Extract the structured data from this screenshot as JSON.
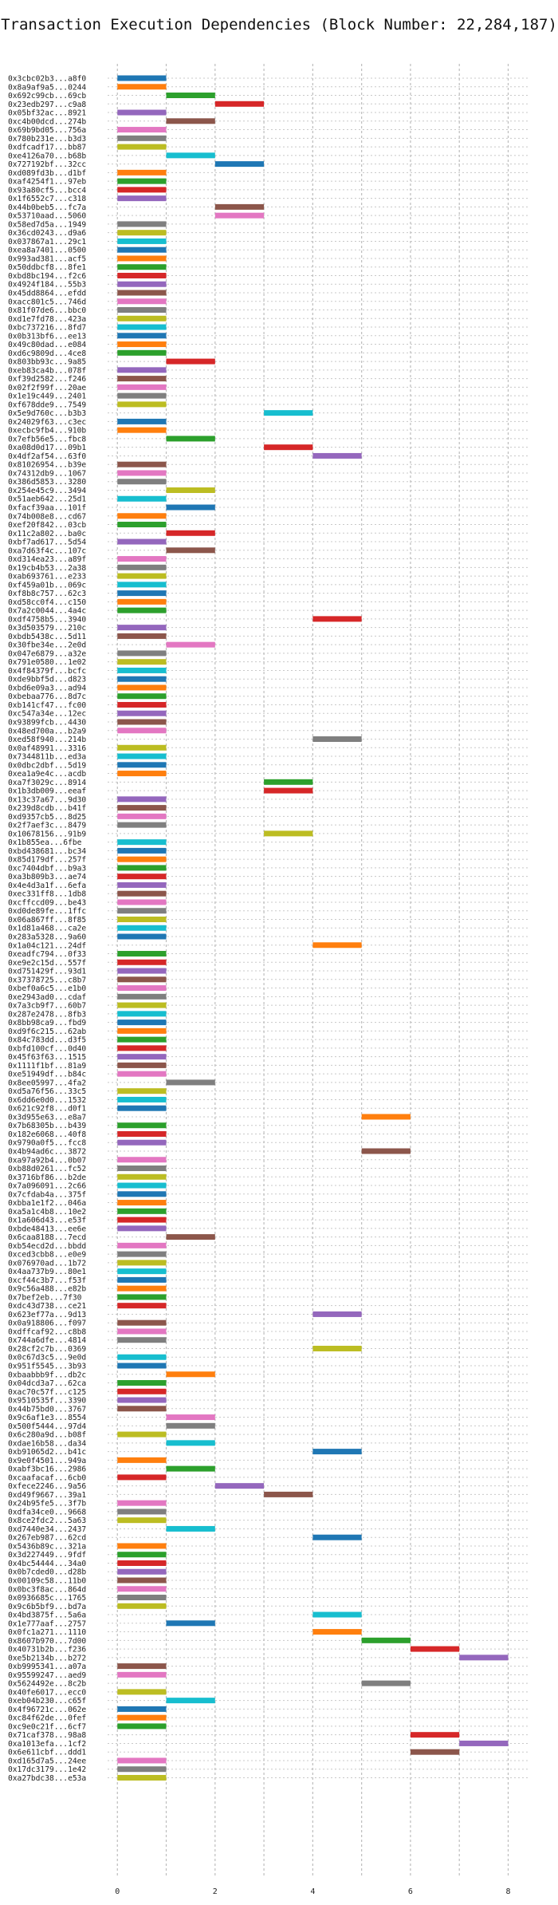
{
  "chart_data": {
    "type": "bar",
    "orientation": "horizontal",
    "title": "Transaction Execution Dependencies (Block Number: 22,284,187)",
    "xlabel": "",
    "ylabel": "",
    "xlim": [
      -0.2,
      8.4
    ],
    "xticks": [
      0,
      2,
      4,
      6,
      8
    ],
    "grid": {
      "x": true,
      "y": true,
      "style": "dotted"
    },
    "legend": "none",
    "palette": [
      "#1f77b4",
      "#ff7f0e",
      "#2ca02c",
      "#d62728",
      "#9467bd",
      "#8c564b",
      "#e377c2",
      "#7f7f7f",
      "#bcbd22",
      "#17becf"
    ],
    "transactions": [
      {
        "label": "0x3cbc02b3...a8f0",
        "start": 0,
        "end": 1
      },
      {
        "label": "0x8a9af9a5...0244",
        "start": 0,
        "end": 1
      },
      {
        "label": "0x692c99cb...69cb",
        "start": 1,
        "end": 2
      },
      {
        "label": "0x23edb297...c9a8",
        "start": 2,
        "end": 3
      },
      {
        "label": "0x05bf32ac...8921",
        "start": 0,
        "end": 1
      },
      {
        "label": "0xc4b00dcd...274b",
        "start": 1,
        "end": 2
      },
      {
        "label": "0x69b9bd05...756a",
        "start": 0,
        "end": 1
      },
      {
        "label": "0x780b231e...b3d3",
        "start": 0,
        "end": 1
      },
      {
        "label": "0xdfcadf17...bb87",
        "start": 0,
        "end": 1
      },
      {
        "label": "0xe4126a70...b68b",
        "start": 1,
        "end": 2
      },
      {
        "label": "0x727192bf...32cc",
        "start": 2,
        "end": 3
      },
      {
        "label": "0xd089fd3b...d1bf",
        "start": 0,
        "end": 1
      },
      {
        "label": "0xaf4254f1...97eb",
        "start": 0,
        "end": 1
      },
      {
        "label": "0x93a80cf5...bcc4",
        "start": 0,
        "end": 1
      },
      {
        "label": "0x1f6552c7...c318",
        "start": 0,
        "end": 1
      },
      {
        "label": "0x44b0beb5...fc7a",
        "start": 2,
        "end": 3
      },
      {
        "label": "0x53710aad...5060",
        "start": 2,
        "end": 3
      },
      {
        "label": "0x58ed7d5a...1949",
        "start": 0,
        "end": 1
      },
      {
        "label": "0x36cd0243...d9a6",
        "start": 0,
        "end": 1
      },
      {
        "label": "0x037867a1...29c1",
        "start": 0,
        "end": 1
      },
      {
        "label": "0xea8a7401...0500",
        "start": 0,
        "end": 1
      },
      {
        "label": "0x993ad381...acf5",
        "start": 0,
        "end": 1
      },
      {
        "label": "0x50ddbcf8...8fe1",
        "start": 0,
        "end": 1
      },
      {
        "label": "0xbd8bc194...f2c6",
        "start": 0,
        "end": 1
      },
      {
        "label": "0x4924f184...55b3",
        "start": 0,
        "end": 1
      },
      {
        "label": "0x45dd8864...efdd",
        "start": 0,
        "end": 1
      },
      {
        "label": "0xacc801c5...746d",
        "start": 0,
        "end": 1
      },
      {
        "label": "0x81f07de6...bbc0",
        "start": 0,
        "end": 1
      },
      {
        "label": "0xd1e7fd78...423a",
        "start": 0,
        "end": 1
      },
      {
        "label": "0xbc737216...8fd7",
        "start": 0,
        "end": 1
      },
      {
        "label": "0x0b313bf6...ee13",
        "start": 0,
        "end": 1
      },
      {
        "label": "0x49c80dad...e084",
        "start": 0,
        "end": 1
      },
      {
        "label": "0xd6c9809d...4ce8",
        "start": 0,
        "end": 1
      },
      {
        "label": "0x803bb93c...9a85",
        "start": 1,
        "end": 2
      },
      {
        "label": "0xeb83ca4b...078f",
        "start": 0,
        "end": 1
      },
      {
        "label": "0xf39d2582...f246",
        "start": 0,
        "end": 1
      },
      {
        "label": "0x02f2f99f...20ae",
        "start": 0,
        "end": 1
      },
      {
        "label": "0x1e19c449...2401",
        "start": 0,
        "end": 1
      },
      {
        "label": "0xf678dde9...7549",
        "start": 0,
        "end": 1
      },
      {
        "label": "0x5e9d760c...b3b3",
        "start": 3,
        "end": 4
      },
      {
        "label": "0x24029f63...c3ec",
        "start": 0,
        "end": 1
      },
      {
        "label": "0xecbc9fb4...910b",
        "start": 0,
        "end": 1
      },
      {
        "label": "0x7efb56e5...fbc8",
        "start": 1,
        "end": 2
      },
      {
        "label": "0xa08d0d17...09b1",
        "start": 3,
        "end": 4
      },
      {
        "label": "0x4df2af54...63f0",
        "start": 4,
        "end": 5
      },
      {
        "label": "0x81026954...b39e",
        "start": 0,
        "end": 1
      },
      {
        "label": "0x74312db9...1067",
        "start": 0,
        "end": 1
      },
      {
        "label": "0x386d5853...3280",
        "start": 0,
        "end": 1
      },
      {
        "label": "0x254e45c9...3494",
        "start": 1,
        "end": 2
      },
      {
        "label": "0x51aeb642...25d1",
        "start": 0,
        "end": 1
      },
      {
        "label": "0xfacf39aa...101f",
        "start": 1,
        "end": 2
      },
      {
        "label": "0x74b008e8...cd67",
        "start": 0,
        "end": 1
      },
      {
        "label": "0xef20f842...03cb",
        "start": 0,
        "end": 1
      },
      {
        "label": "0x11c2a802...ba0c",
        "start": 1,
        "end": 2
      },
      {
        "label": "0xbf7ad617...5d54",
        "start": 0,
        "end": 1
      },
      {
        "label": "0xa7d63f4c...107c",
        "start": 1,
        "end": 2
      },
      {
        "label": "0xd314ea23...a89f",
        "start": 0,
        "end": 1
      },
      {
        "label": "0x19cb4b53...2a38",
        "start": 0,
        "end": 1
      },
      {
        "label": "0xab693761...e233",
        "start": 0,
        "end": 1
      },
      {
        "label": "0xf459a01b...069c",
        "start": 0,
        "end": 1
      },
      {
        "label": "0xf8b8c757...62c3",
        "start": 0,
        "end": 1
      },
      {
        "label": "0xd58cc0f4...c150",
        "start": 0,
        "end": 1
      },
      {
        "label": "0x7a2c0044...4a4c",
        "start": 0,
        "end": 1
      },
      {
        "label": "0xdf4758b5...3940",
        "start": 4,
        "end": 5
      },
      {
        "label": "0x3d503579...210c",
        "start": 0,
        "end": 1
      },
      {
        "label": "0xbdb5438c...5d11",
        "start": 0,
        "end": 1
      },
      {
        "label": "0x30fbe34e...2e0d",
        "start": 1,
        "end": 2
      },
      {
        "label": "0x047e6879...a32e",
        "start": 0,
        "end": 1
      },
      {
        "label": "0x791e0580...1e02",
        "start": 0,
        "end": 1
      },
      {
        "label": "0x4f84379f...bcfc",
        "start": 0,
        "end": 1
      },
      {
        "label": "0xde9bbf5d...d823",
        "start": 0,
        "end": 1
      },
      {
        "label": "0xbd6e09a3...ad94",
        "start": 0,
        "end": 1
      },
      {
        "label": "0xbebaa776...8d7c",
        "start": 0,
        "end": 1
      },
      {
        "label": "0xb141cf47...fc00",
        "start": 0,
        "end": 1
      },
      {
        "label": "0xc547a34e...12ec",
        "start": 0,
        "end": 1
      },
      {
        "label": "0x93899fcb...4430",
        "start": 0,
        "end": 1
      },
      {
        "label": "0x48ed700a...b2a9",
        "start": 0,
        "end": 1
      },
      {
        "label": "0xed58f940...214b",
        "start": 4,
        "end": 5
      },
      {
        "label": "0x0af48991...3316",
        "start": 0,
        "end": 1
      },
      {
        "label": "0x7344811b...ed3a",
        "start": 0,
        "end": 1
      },
      {
        "label": "0x0dbc2dbf...5d19",
        "start": 0,
        "end": 1
      },
      {
        "label": "0xea1a9e4c...acdb",
        "start": 0,
        "end": 1
      },
      {
        "label": "0xa7f3029c...8914",
        "start": 3,
        "end": 4
      },
      {
        "label": "0x1b3db009...eeaf",
        "start": 3,
        "end": 4
      },
      {
        "label": "0x13c37a67...9d30",
        "start": 0,
        "end": 1
      },
      {
        "label": "0x239d8cdb...b41f",
        "start": 0,
        "end": 1
      },
      {
        "label": "0xd9357cb5...8d25",
        "start": 0,
        "end": 1
      },
      {
        "label": "0x2f7aef3c...8479",
        "start": 0,
        "end": 1
      },
      {
        "label": "0x10678156...91b9",
        "start": 3,
        "end": 4
      },
      {
        "label": "0x1b855ea...6fbe",
        "start": 0,
        "end": 1
      },
      {
        "label": "0xbd438681...bc34",
        "start": 0,
        "end": 1
      },
      {
        "label": "0x85d179df...257f",
        "start": 0,
        "end": 1
      },
      {
        "label": "0xc7404dbf...b9a3",
        "start": 0,
        "end": 1
      },
      {
        "label": "0xa3b809b3...ae74",
        "start": 0,
        "end": 1
      },
      {
        "label": "0x4e4d3a1f...6efa",
        "start": 0,
        "end": 1
      },
      {
        "label": "0xec331ff8...1db8",
        "start": 0,
        "end": 1
      },
      {
        "label": "0xcffccd09...be43",
        "start": 0,
        "end": 1
      },
      {
        "label": "0xd0de89fe...1ffc",
        "start": 0,
        "end": 1
      },
      {
        "label": "0x06a867ff...8f85",
        "start": 0,
        "end": 1
      },
      {
        "label": "0x1d81a468...ca2e",
        "start": 0,
        "end": 1
      },
      {
        "label": "0x283a5328...9a60",
        "start": 0,
        "end": 1
      },
      {
        "label": "0x1a04c121...24df",
        "start": 4,
        "end": 5
      },
      {
        "label": "0xeadfc794...0f33",
        "start": 0,
        "end": 1
      },
      {
        "label": "0xe9e2c15d...557f",
        "start": 0,
        "end": 1
      },
      {
        "label": "0xd751429f...93d1",
        "start": 0,
        "end": 1
      },
      {
        "label": "0x37378725...c8b7",
        "start": 0,
        "end": 1
      },
      {
        "label": "0xbef0a6c5...e1b0",
        "start": 0,
        "end": 1
      },
      {
        "label": "0xe2943ad0...cdaf",
        "start": 0,
        "end": 1
      },
      {
        "label": "0x7a3cb9f7...60b7",
        "start": 0,
        "end": 1
      },
      {
        "label": "0x287e2478...8fb3",
        "start": 0,
        "end": 1
      },
      {
        "label": "0x8bb98ca9...fbd9",
        "start": 0,
        "end": 1
      },
      {
        "label": "0xd9f6c215...62ab",
        "start": 0,
        "end": 1
      },
      {
        "label": "0x84c783dd...d3f5",
        "start": 0,
        "end": 1
      },
      {
        "label": "0xbfd100cf...0d40",
        "start": 0,
        "end": 1
      },
      {
        "label": "0x45f63f63...1515",
        "start": 0,
        "end": 1
      },
      {
        "label": "0x1111f1bf...81a9",
        "start": 0,
        "end": 1
      },
      {
        "label": "0xe51949df...b84c",
        "start": 0,
        "end": 1
      },
      {
        "label": "0x8ee05997...4fa2",
        "start": 1,
        "end": 2
      },
      {
        "label": "0xd5a76f56...33c5",
        "start": 0,
        "end": 1
      },
      {
        "label": "0x6dd6e0d0...1532",
        "start": 0,
        "end": 1
      },
      {
        "label": "0x621c92f8...d0f1",
        "start": 0,
        "end": 1
      },
      {
        "label": "0x3d955e63...e8a7",
        "start": 5,
        "end": 6
      },
      {
        "label": "0x7b68305b...b439",
        "start": 0,
        "end": 1
      },
      {
        "label": "0x182e6068...40f8",
        "start": 0,
        "end": 1
      },
      {
        "label": "0x9790a0f5...fcc8",
        "start": 0,
        "end": 1
      },
      {
        "label": "0x4b94ad6c...3872",
        "start": 5,
        "end": 6
      },
      {
        "label": "0xa97a92b4...0b07",
        "start": 0,
        "end": 1
      },
      {
        "label": "0xb88d0261...fc52",
        "start": 0,
        "end": 1
      },
      {
        "label": "0x3716bf86...b2de",
        "start": 0,
        "end": 1
      },
      {
        "label": "0x7a096091...2c66",
        "start": 0,
        "end": 1
      },
      {
        "label": "0x7cfdab4a...375f",
        "start": 0,
        "end": 1
      },
      {
        "label": "0xbba1e1f2...046a",
        "start": 0,
        "end": 1
      },
      {
        "label": "0xa5a1c4b8...10e2",
        "start": 0,
        "end": 1
      },
      {
        "label": "0x1a606d43...e53f",
        "start": 0,
        "end": 1
      },
      {
        "label": "0xbde48413...ee6e",
        "start": 0,
        "end": 1
      },
      {
        "label": "0x6caa8188...7ecd",
        "start": 1,
        "end": 2
      },
      {
        "label": "0xb54ecd2d...bbdd",
        "start": 0,
        "end": 1
      },
      {
        "label": "0xced3cbb8...e0e9",
        "start": 0,
        "end": 1
      },
      {
        "label": "0x076970ad...1b72",
        "start": 0,
        "end": 1
      },
      {
        "label": "0x4aa737b9...80e1",
        "start": 0,
        "end": 1
      },
      {
        "label": "0xcf44c3b7...f53f",
        "start": 0,
        "end": 1
      },
      {
        "label": "0x9c56a488...e82b",
        "start": 0,
        "end": 1
      },
      {
        "label": "0x7bef2eb...7f30",
        "start": 0,
        "end": 1
      },
      {
        "label": "0xdc43d738...ce21",
        "start": 0,
        "end": 1
      },
      {
        "label": "0x623ef77a...9d13",
        "start": 4,
        "end": 5
      },
      {
        "label": "0x0a918806...f097",
        "start": 0,
        "end": 1
      },
      {
        "label": "0xdffcaf92...c8b8",
        "start": 0,
        "end": 1
      },
      {
        "label": "0x744a6dfe...4814",
        "start": 0,
        "end": 1
      },
      {
        "label": "0x28cf2c7b...0369",
        "start": 4,
        "end": 5
      },
      {
        "label": "0x0c67d3c5...9e0d",
        "start": 0,
        "end": 1
      },
      {
        "label": "0x951f5545...3b93",
        "start": 0,
        "end": 1
      },
      {
        "label": "0xbaabbb9f...db2c",
        "start": 1,
        "end": 2
      },
      {
        "label": "0x04dcd3a7...62ca",
        "start": 0,
        "end": 1
      },
      {
        "label": "0xac70c57f...c125",
        "start": 0,
        "end": 1
      },
      {
        "label": "0x9510535f...3390",
        "start": 0,
        "end": 1
      },
      {
        "label": "0x44b75bd0...3767",
        "start": 0,
        "end": 1
      },
      {
        "label": "0x9c6af1e3...8554",
        "start": 1,
        "end": 2
      },
      {
        "label": "0x500f5444...97d4",
        "start": 1,
        "end": 2
      },
      {
        "label": "0x6c280a9d...b08f",
        "start": 0,
        "end": 1
      },
      {
        "label": "0xdae16b58...da34",
        "start": 1,
        "end": 2
      },
      {
        "label": "0xb91065d2...b41c",
        "start": 4,
        "end": 5
      },
      {
        "label": "0x9e0f4501...949a",
        "start": 0,
        "end": 1
      },
      {
        "label": "0xabf3bc16...2986",
        "start": 1,
        "end": 2
      },
      {
        "label": "0xcaafacaf...6cb0",
        "start": 0,
        "end": 1
      },
      {
        "label": "0xfece2246...9a56",
        "start": 2,
        "end": 3
      },
      {
        "label": "0xd49f9667...39a1",
        "start": 3,
        "end": 4
      },
      {
        "label": "0x24b95fe5...3f7b",
        "start": 0,
        "end": 1
      },
      {
        "label": "0xdfa34ce0...9668",
        "start": 0,
        "end": 1
      },
      {
        "label": "0x8ce2fdc2...5a63",
        "start": 0,
        "end": 1
      },
      {
        "label": "0xd7440e34...2437",
        "start": 1,
        "end": 2
      },
      {
        "label": "0x267eb987...62cd",
        "start": 4,
        "end": 5
      },
      {
        "label": "0x5436b89c...321a",
        "start": 0,
        "end": 1
      },
      {
        "label": "0x3d227449...9fdf",
        "start": 0,
        "end": 1
      },
      {
        "label": "0x4bc54444...34a0",
        "start": 0,
        "end": 1
      },
      {
        "label": "0x0b7cded0...d28b",
        "start": 0,
        "end": 1
      },
      {
        "label": "0x00109c58...11b0",
        "start": 0,
        "end": 1
      },
      {
        "label": "0x0bc3f8ac...864d",
        "start": 0,
        "end": 1
      },
      {
        "label": "0x0936685c...1765",
        "start": 0,
        "end": 1
      },
      {
        "label": "0x9c6b5bf9...bd7a",
        "start": 0,
        "end": 1
      },
      {
        "label": "0x4bd3875f...5a6a",
        "start": 4,
        "end": 5
      },
      {
        "label": "0x1e777aaf...2757",
        "start": 1,
        "end": 2
      },
      {
        "label": "0x0fc1a271...1110",
        "start": 4,
        "end": 5
      },
      {
        "label": "0x8607b970...7d00",
        "start": 5,
        "end": 6
      },
      {
        "label": "0x40731b2b...f236",
        "start": 6,
        "end": 7
      },
      {
        "label": "0xe5b2134b...b272",
        "start": 7,
        "end": 8
      },
      {
        "label": "0xb9995341...a07a",
        "start": 0,
        "end": 1
      },
      {
        "label": "0x95599247...aed9",
        "start": 0,
        "end": 1
      },
      {
        "label": "0x5624492e...8c2b",
        "start": 5,
        "end": 6
      },
      {
        "label": "0x40fe6017...ecc0",
        "start": 0,
        "end": 1
      },
      {
        "label": "0xeb04b230...c65f",
        "start": 1,
        "end": 2
      },
      {
        "label": "0x4f96721c...062e",
        "start": 0,
        "end": 1
      },
      {
        "label": "0xc84f62de...0fef",
        "start": 0,
        "end": 1
      },
      {
        "label": "0xc9e0c21f...6cf7",
        "start": 0,
        "end": 1
      },
      {
        "label": "0x71caf378...98a8",
        "start": 6,
        "end": 7
      },
      {
        "label": "0xa1013efa...1cf2",
        "start": 7,
        "end": 8
      },
      {
        "label": "0x6e611cbf...ddd1",
        "start": 6,
        "end": 7
      },
      {
        "label": "0xd165d7a5...24ee",
        "start": 0,
        "end": 1
      },
      {
        "label": "0x17dc3179...1e42",
        "start": 0,
        "end": 1
      },
      {
        "label": "0xa27bdc38...e53a",
        "start": 0,
        "end": 1
      }
    ]
  }
}
